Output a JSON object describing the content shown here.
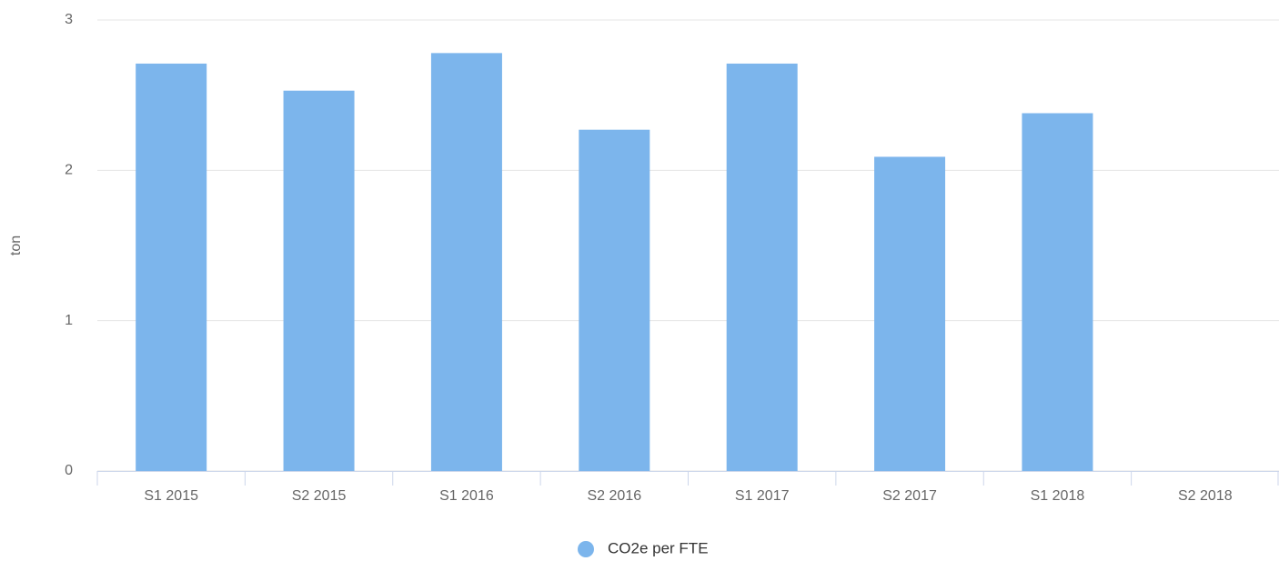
{
  "chart_data": {
    "type": "bar",
    "y_axis_label": "ton",
    "categories": [
      "S1 2015",
      "S2 2015",
      "S1 2016",
      "S2 2016",
      "S1 2017",
      "S2 2017",
      "S1 2018",
      "S2 2018"
    ],
    "series": [
      {
        "name": "CO2e per FTE",
        "color": "#7cb5ec",
        "values": [
          2.71,
          2.53,
          2.78,
          2.27,
          2.71,
          2.09,
          2.38,
          null
        ]
      }
    ],
    "ylim": [
      0,
      3
    ],
    "yticks": [
      0,
      1,
      2,
      3
    ],
    "grid": true,
    "legend": "bottom"
  }
}
